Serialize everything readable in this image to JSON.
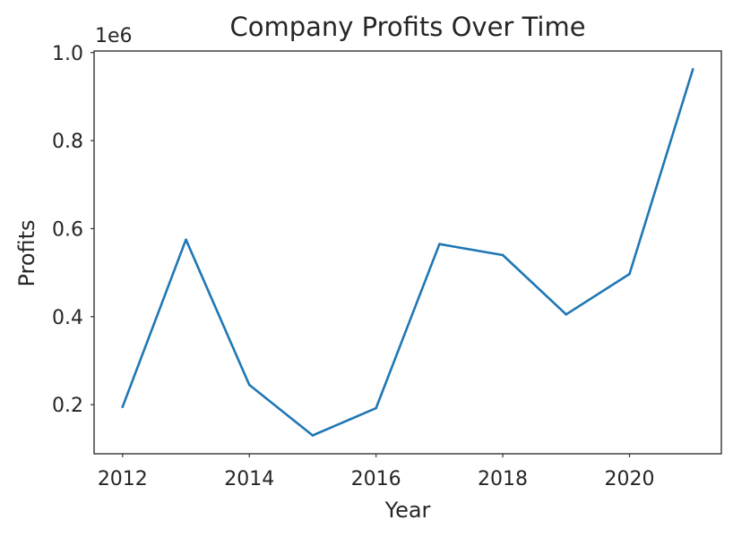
{
  "chart_data": {
    "type": "line",
    "title": "Company Profits Over Time",
    "xlabel": "Year",
    "ylabel": "Profits",
    "y_offset_label": "1e6",
    "x": [
      2012,
      2013,
      2014,
      2015,
      2016,
      2017,
      2018,
      2019,
      2020,
      2021
    ],
    "series": [
      {
        "values": [
          195000,
          575000,
          245000,
          130000,
          192000,
          565000,
          540000,
          405000,
          497000,
          962000
        ],
        "color": "#1f77b4"
      }
    ],
    "xticks": [
      2012,
      2014,
      2016,
      2018,
      2020
    ],
    "xtick_labels": [
      "2012",
      "2014",
      "2016",
      "2018",
      "2020"
    ],
    "yticks": [
      200000,
      400000,
      600000,
      800000,
      1000000
    ],
    "ytick_labels": [
      "0.2",
      "0.4",
      "0.6",
      "0.8",
      "1.0"
    ],
    "xlim": [
      2011.55,
      2021.45
    ],
    "ylim": [
      88400,
      1003600
    ],
    "grid": false,
    "legend": "none"
  }
}
